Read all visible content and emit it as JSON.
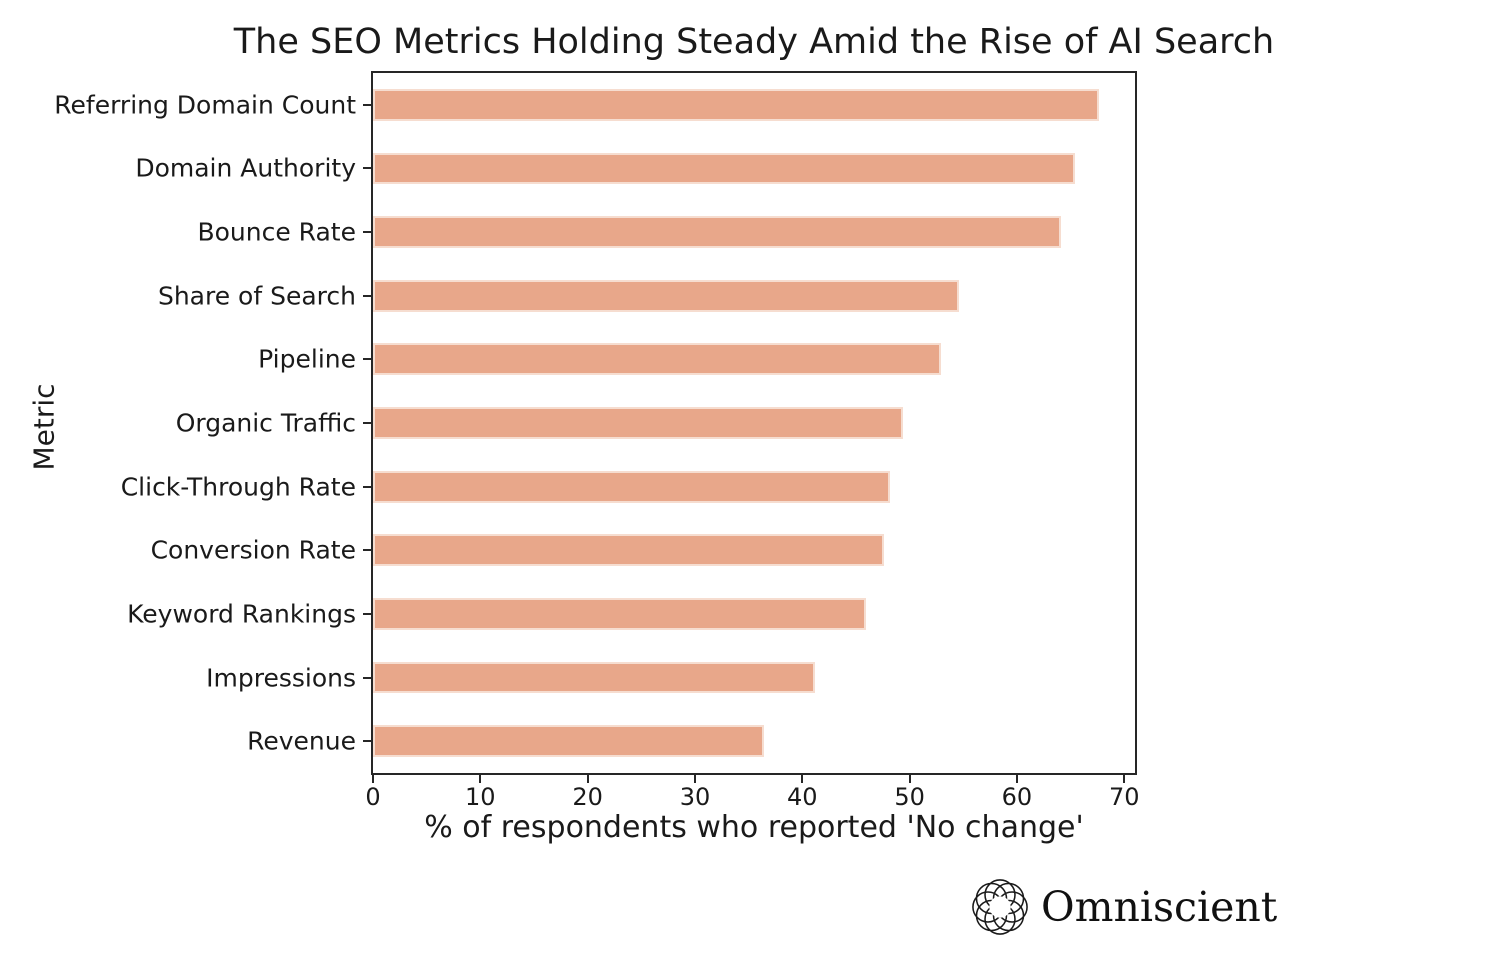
{
  "page": {
    "background": "#ffffff"
  },
  "chart_data": {
    "type": "bar",
    "orientation": "horizontal",
    "title": "The SEO Metrics Holding Steady Amid the Rise of AI Search",
    "xlabel": "% of respondents who reported 'No change'",
    "ylabel": "Metric",
    "categories": [
      "Referring Domain Count",
      "Domain Authority",
      "Bounce Rate",
      "Share of Search",
      "Pipeline",
      "Organic Traffic",
      "Click-Through Rate",
      "Conversion Rate",
      "Keyword Rankings",
      "Impressions",
      "Revenue"
    ],
    "values": [
      67.6,
      65.4,
      64.1,
      54.6,
      52.9,
      49.4,
      48.2,
      47.6,
      45.9,
      41.2,
      36.4
    ],
    "xticks": [
      0,
      10,
      20,
      30,
      40,
      50,
      60,
      70
    ],
    "xlim": [
      0,
      71
    ],
    "bar_height_fraction": 0.5,
    "grid": false,
    "legend": "none",
    "colors": {
      "bar_fill": "#e8a78a",
      "bar_edge": "#f6ddd0",
      "axis": "#262626",
      "text": "#1a1a1a"
    }
  },
  "branding": {
    "logo_text": "Omniscient",
    "logo_icon": "rosette-knot-icon"
  }
}
